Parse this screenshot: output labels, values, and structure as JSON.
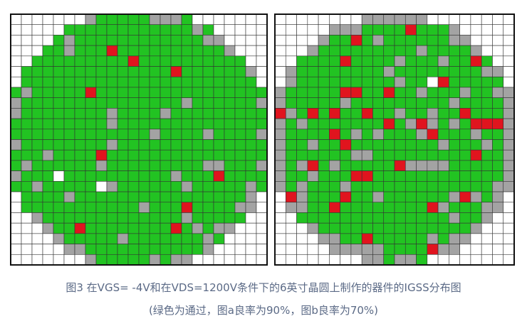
{
  "figure": {
    "caption": "图3 在VGS= -4V和在VDS=1200V条件下的6英寸晶圆上制作的器件的IGSS分布图",
    "note": "(绿色为通过，图a良率为90%，图b良率为70%)"
  }
}
